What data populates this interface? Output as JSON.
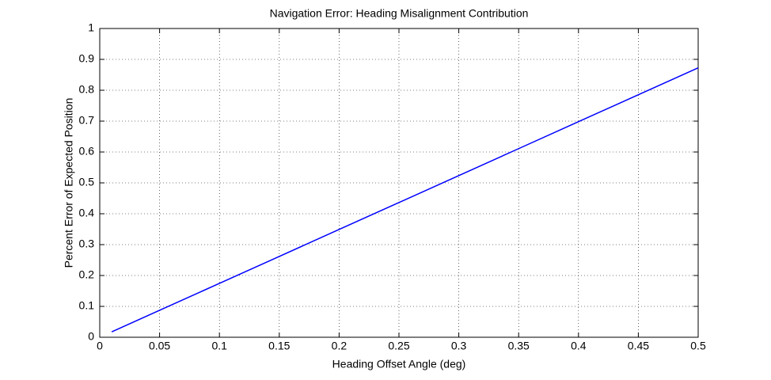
{
  "chart_data": {
    "type": "line",
    "title": "Navigation Error:  Heading Misalignment Contribution",
    "x_label": "Heading Offset Angle (deg)",
    "y_label": "Percent Error of Expected Position",
    "x": [
      0.01,
      0.05,
      0.1,
      0.15,
      0.2,
      0.25,
      0.3,
      0.35,
      0.4,
      0.45,
      0.5
    ],
    "series": [
      {
        "color": "#0000ff",
        "values": [
          0.0175,
          0.0873,
          0.1745,
          0.2618,
          0.3491,
          0.4363,
          0.5236,
          0.6109,
          0.6981,
          0.7854,
          0.8727
        ]
      }
    ],
    "xlim": [
      0,
      0.5
    ],
    "xticks": [
      0,
      0.05,
      0.1,
      0.15,
      0.2,
      0.25,
      0.3,
      0.35,
      0.4,
      0.45,
      0.5
    ],
    "ylim": [
      0,
      1
    ],
    "yticks": [
      0,
      0.1,
      0.2,
      0.3,
      0.4,
      0.5,
      0.6,
      0.7,
      0.8,
      0.9,
      1
    ],
    "grid": true
  }
}
